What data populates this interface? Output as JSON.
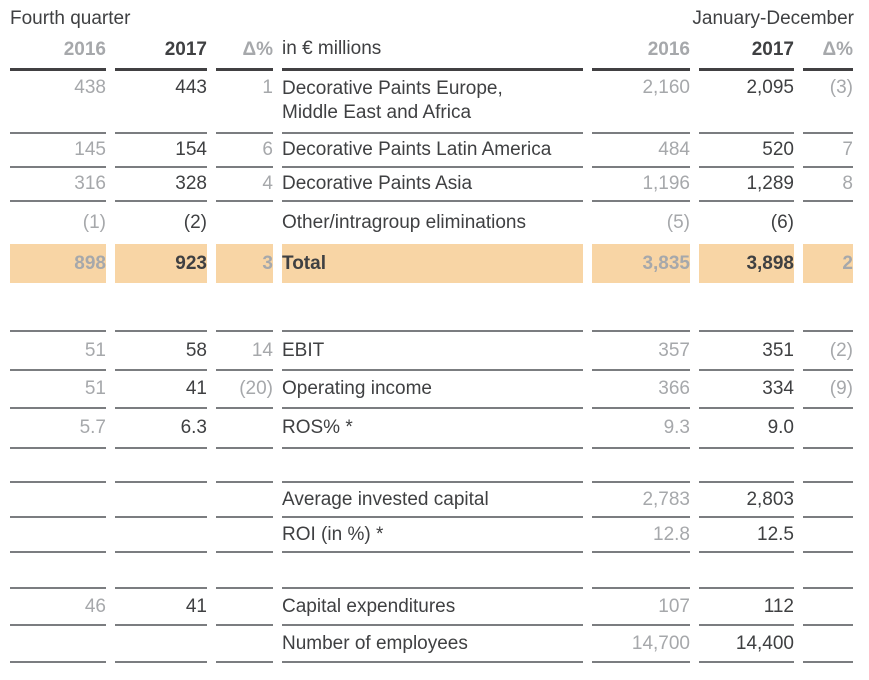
{
  "page": {
    "left_period": "Fourth quarter",
    "right_period": "January-December"
  },
  "accent_color": "#f8d5a5",
  "table": {
    "headers": {
      "q4_2016": "2016",
      "q4_2017": "2017",
      "q4_delta": "Δ%",
      "label": "in € millions",
      "fy_2016": "2016",
      "fy_2017": "2017",
      "fy_delta": "Δ%"
    },
    "rows": [
      {
        "cells": [
          "438",
          "443",
          "1",
          "Decorative Paints Europe,\nMiddle East and Africa",
          "2,160",
          "2,095",
          "(3)"
        ]
      },
      {
        "cells": [
          "145",
          "154",
          "6",
          "Decorative Paints Latin America",
          "484",
          "520",
          "7"
        ]
      },
      {
        "cells": [
          "316",
          "328",
          "4",
          "Decorative Paints Asia",
          "1,196",
          "1,289",
          "8"
        ]
      },
      {
        "cells": [
          "(1)",
          "(2)",
          "",
          "Other/intragroup eliminations",
          "(5)",
          "(6)",
          ""
        ]
      },
      {
        "cells": [
          "898",
          "923",
          "3",
          "Total",
          "3,835",
          "3,898",
          "2"
        ]
      },
      {
        "cells": [
          "",
          "",
          "",
          "",
          "",
          "",
          ""
        ]
      },
      {
        "cells": [
          "51",
          "58",
          "14",
          "EBIT",
          "357",
          "351",
          "(2)"
        ]
      },
      {
        "cells": [
          "51",
          "41",
          "(20)",
          "Operating income",
          "366",
          "334",
          "(9)"
        ]
      },
      {
        "cells": [
          "5.7",
          "6.3",
          "",
          "ROS% *",
          "9.3",
          "9.0",
          ""
        ]
      },
      {
        "cells": [
          "",
          "",
          "",
          "",
          "",
          "",
          ""
        ]
      },
      {
        "cells": [
          "",
          "",
          "",
          "Average invested capital",
          "2,783",
          "2,803",
          ""
        ]
      },
      {
        "cells": [
          "",
          "",
          "",
          "ROI (in %) *",
          "12.8",
          "12.5",
          ""
        ]
      },
      {
        "cells": [
          "",
          "",
          "",
          "",
          "",
          "",
          ""
        ]
      },
      {
        "cells": [
          "46",
          "41",
          "",
          "Capital expenditures",
          "107",
          "112",
          ""
        ]
      },
      {
        "cells": [
          "",
          "",
          "",
          "Number of employees",
          "14,700",
          "14,400",
          ""
        ]
      }
    ]
  }
}
